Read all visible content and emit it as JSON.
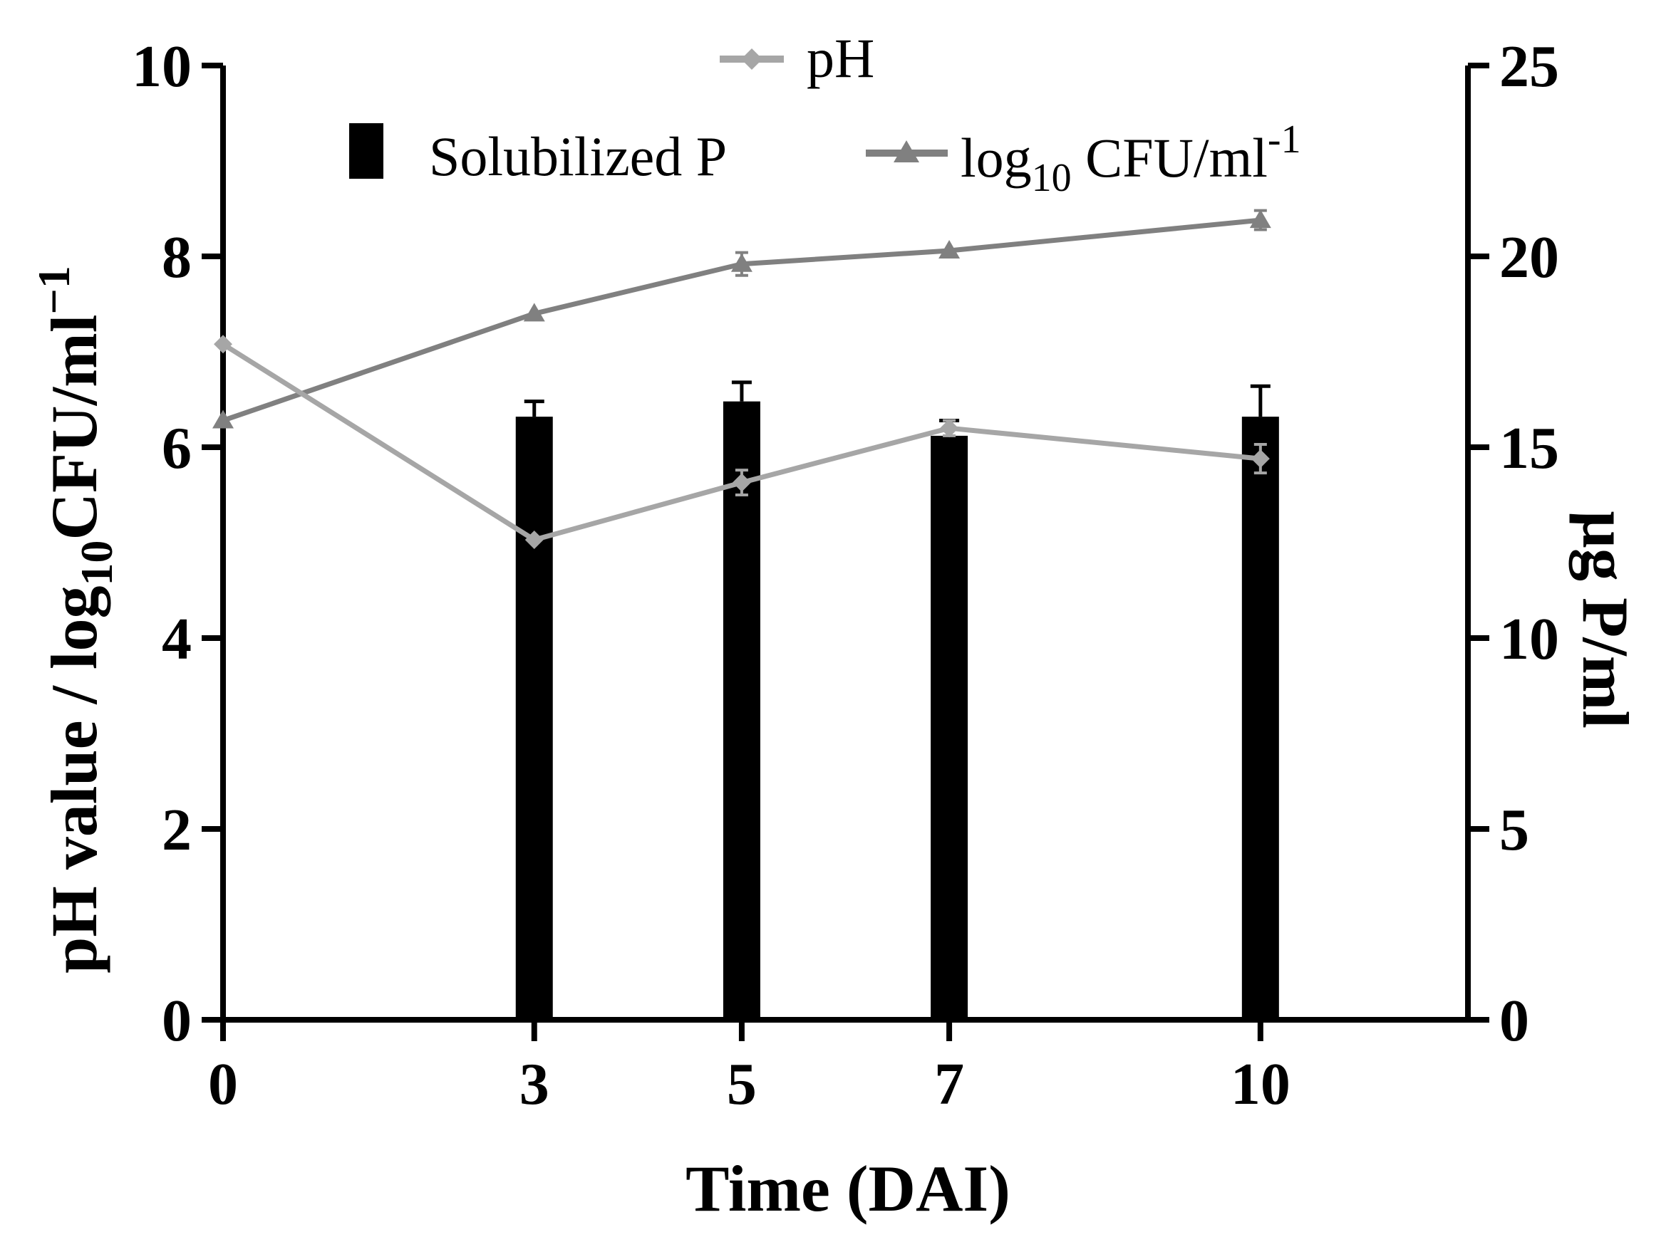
{
  "chart_data": {
    "type": "bar",
    "x": [
      0,
      3,
      5,
      7,
      10
    ],
    "xlim": [
      0,
      12
    ],
    "x_ticks": [
      "0",
      "3",
      "5",
      "7",
      "10"
    ],
    "xlabel": "Time (DAI)",
    "ylabel_left": {
      "main": "pH value / log",
      "sub": "10",
      "tail": "CFU/ml",
      "sup": "−1"
    },
    "ylabel_right": "µg P/ml",
    "ylim_left": [
      0,
      10
    ],
    "ylim_right": [
      0,
      25
    ],
    "y_ticks_left": [
      "0",
      "2",
      "4",
      "6",
      "8",
      "10"
    ],
    "y_ticks_right": [
      "0",
      "5",
      "10",
      "15",
      "20",
      "25"
    ],
    "series": [
      {
        "name": "Solubilized P",
        "kind": "bar",
        "axis": "right",
        "color": "#000000",
        "x": [
          3,
          5,
          7,
          10
        ],
        "values": [
          15.8,
          16.2,
          15.3,
          15.8
        ],
        "errors": [
          0.4,
          0.5,
          0.4,
          0.8
        ]
      },
      {
        "name": "pH",
        "kind": "line",
        "axis": "left",
        "marker": "diamond",
        "color": "#a6a6a6",
        "x": [
          0,
          3,
          5,
          7,
          10
        ],
        "values": [
          7.08,
          5.03,
          5.63,
          6.2,
          5.88
        ],
        "errors": [
          0,
          0,
          0.13,
          0.08,
          0.15
        ]
      },
      {
        "name_main": "log",
        "name_sub": "10",
        "name_tail": " CFU/ml",
        "name_sup": "-1",
        "kind": "line",
        "axis": "left",
        "marker": "triangle",
        "color": "#808080",
        "x": [
          0,
          3,
          5,
          7,
          10
        ],
        "values": [
          6.28,
          7.4,
          7.92,
          8.06,
          8.38
        ],
        "errors": [
          0,
          0,
          0.12,
          0,
          0.1
        ]
      }
    ],
    "legend_position": "top"
  }
}
